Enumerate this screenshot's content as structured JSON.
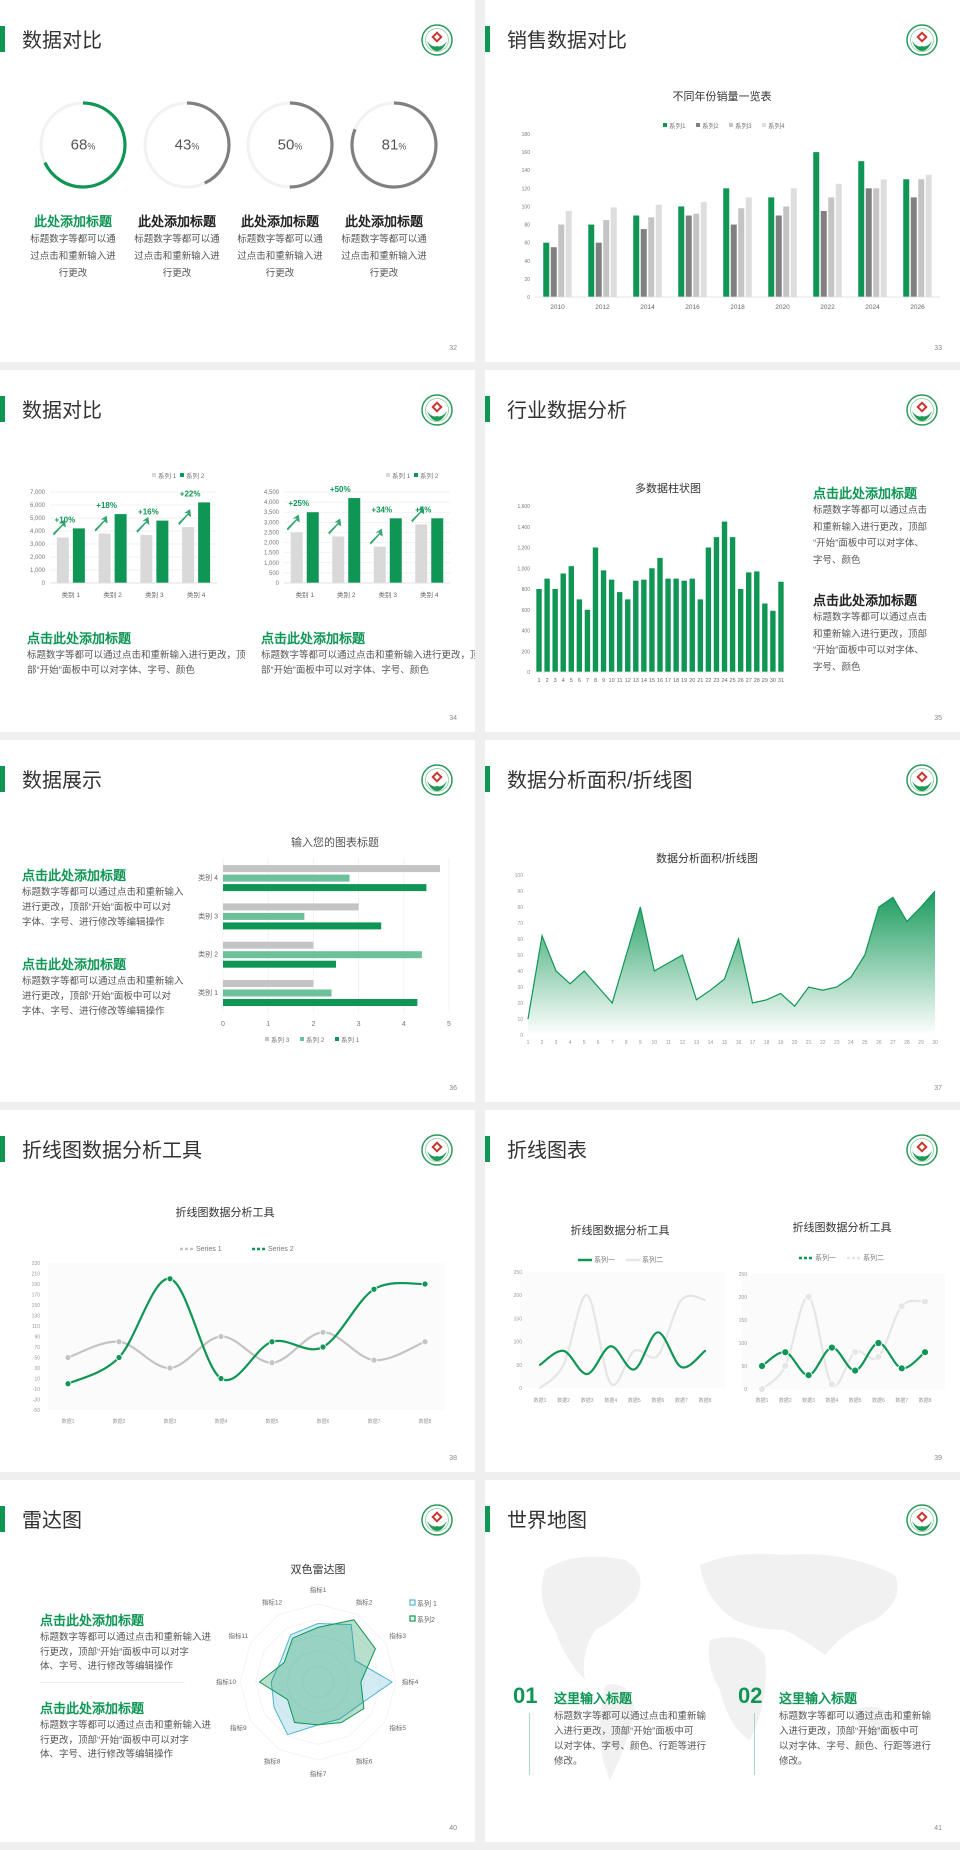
{
  "colors": {
    "green": "#0f9655",
    "gray": "#808080",
    "light_gray": "#c8c8c8",
    "lighter_gray": "#dcdcdc",
    "mid_green": "#6cc09a",
    "teal": "#4fb3cf"
  },
  "slides": {
    "s32": {
      "title": "数据对比",
      "page": "32",
      "items": [
        {
          "value": 68,
          "unit": "%",
          "heading": "此处添加标题",
          "body": [
            "标题数字等都可以通",
            "过点击和重新输入进",
            "行更改"
          ]
        },
        {
          "value": 43,
          "unit": "%",
          "heading": "此处添加标题",
          "body": [
            "标题数字等都可以通",
            "过点击和重新输入进",
            "行更改"
          ]
        },
        {
          "value": 50,
          "unit": "%",
          "heading": "此处添加标题",
          "body": [
            "标题数字等都可以通",
            "过点击和重新输入进",
            "行更改"
          ]
        },
        {
          "value": 81,
          "unit": "%",
          "heading": "此处添加标题",
          "body": [
            "标题数字等都可以通",
            "过点击和重新输入进",
            "行更改"
          ]
        }
      ]
    },
    "s33": {
      "title": "销售数据对比",
      "page": "33"
    },
    "s34": {
      "title": "数据对比",
      "page": "34",
      "blocks": [
        {
          "heading": "点击此处添加标题",
          "body": [
            "标题数字等都可以通过点击和重新输入进行更改，顶",
            "部“开始”面板中可以对字体、字号、颜色"
          ]
        },
        {
          "heading": "点击此处添加标题",
          "body": [
            "标题数字等都可以通过点击和重新输入进行更改，顶",
            "部“开始”面板中可以对字体、字号、颜色"
          ]
        }
      ]
    },
    "s35": {
      "title": "行业数据分析",
      "page": "35",
      "blocks": [
        {
          "heading": "点击此处添加标题",
          "body": [
            "标题数字等都可以通过点击",
            "和重新输入进行更改，顶部",
            "“开始”面板中可以对字体、",
            "字号、颜色"
          ]
        },
        {
          "heading": "点击此处添加标题",
          "body": [
            "标题数字等都可以通过点击",
            "和重新输入进行更改，顶部",
            "“开始”面板中可以对字体、",
            "字号、颜色"
          ]
        }
      ]
    },
    "s36": {
      "title": "数据展示",
      "page": "36",
      "blocks": [
        {
          "heading": "点击此处添加标题",
          "body": [
            "标题数字等都可以通过点击和重新输入",
            "进行更改，顶部“开始”面板中可以对",
            "字体、字号、进行修改等编辑操作"
          ]
        },
        {
          "heading": "点击此处添加标题",
          "body": [
            "标题数字等都可以通过点击和重新输入",
            "进行更改，顶部“开始”面板中可以对",
            "字体、字号、进行修改等编辑操作"
          ]
        }
      ]
    },
    "s37": {
      "title": "数据分析面积/折线图",
      "page": "37"
    },
    "s38": {
      "title": "折线图数据分析工具",
      "page": "38"
    },
    "s39": {
      "title": "折线图表",
      "page": "39"
    },
    "s40": {
      "title": "雷达图",
      "page": "40",
      "blocks": [
        {
          "heading": "点击此处添加标题",
          "body": [
            "标题数字等都可以通过点击和重新输入进",
            "行更改，顶部“开始”面板中可以对字",
            "体、字号、进行修改等编辑操作"
          ]
        },
        {
          "heading": "点击此处添加标题",
          "body": [
            "标题数字等都可以通过点击和重新输入进",
            "行更改，顶部“开始”面板中可以对字",
            "体、字号、进行修改等编辑操作"
          ]
        }
      ]
    },
    "s41": {
      "title": "世界地图",
      "page": "41",
      "items": [
        {
          "num": "01",
          "heading": "这里输入标题",
          "body": [
            "标题数字等都可以通过点击和重新输",
            "入进行更改，顶部“开始”面板中可",
            "以对字体、字号、颜色、行距等进行",
            "修改。"
          ]
        },
        {
          "num": "02",
          "heading": "这里输入标题",
          "body": [
            "标题数字等都可以通过点击和重新输",
            "入进行更改，顶部“开始”面板中可",
            "以对字体、字号、颜色、行距等进行",
            "修改。"
          ]
        }
      ]
    }
  },
  "chart_data": [
    {
      "type": "bar",
      "title": "不同年份销量一览表",
      "categories": [
        "2010",
        "2012",
        "2014",
        "2016",
        "2018",
        "2020",
        "2022",
        "2024",
        "2026"
      ],
      "series": [
        {
          "name": "系列1",
          "color": "#0f9655",
          "values": [
            60,
            80,
            90,
            100,
            120,
            110,
            160,
            150,
            130
          ]
        },
        {
          "name": "系列2",
          "color": "#808080",
          "values": [
            55,
            60,
            75,
            90,
            80,
            90,
            95,
            120,
            110
          ]
        },
        {
          "name": "系列3",
          "color": "#c4c4c4",
          "values": [
            80,
            85,
            88,
            92,
            98,
            100,
            110,
            120,
            130
          ]
        },
        {
          "name": "系列4",
          "color": "#dedede",
          "values": [
            95,
            99,
            102,
            105,
            110,
            120,
            125,
            130,
            135
          ]
        }
      ],
      "ylim": [
        0,
        180
      ],
      "yticks": [
        0,
        20,
        40,
        60,
        80,
        100,
        120,
        140,
        160,
        180
      ],
      "legend": "top",
      "grid": false
    },
    {
      "type": "bar",
      "categories": [
        "类别 1",
        "类别 2",
        "类别 3",
        "类别 4"
      ],
      "series": [
        {
          "name": "系列 1",
          "color": "#d9d9d9",
          "values": [
            3500,
            3800,
            3700,
            4300
          ]
        },
        {
          "name": "系列 2",
          "color": "#0f9655",
          "values": [
            4200,
            5300,
            4800,
            6200
          ]
        }
      ],
      "annotations": [
        "+10%",
        "+18%",
        "+16%",
        "+22%"
      ],
      "ylim": [
        0,
        7000
      ],
      "yticks": [
        0,
        1000,
        2000,
        3000,
        4000,
        5000,
        6000,
        7000
      ],
      "legend": "top-right",
      "grid": true
    },
    {
      "type": "bar",
      "categories": [
        "类别 1",
        "类别 2",
        "类别 3",
        "类别 4"
      ],
      "series": [
        {
          "name": "系列 1",
          "color": "#d9d9d9",
          "values": [
            2500,
            2300,
            1800,
            2900
          ]
        },
        {
          "name": "系列 2",
          "color": "#0f9655",
          "values": [
            3500,
            4200,
            3200,
            3200
          ]
        }
      ],
      "annotations": [
        "+25%",
        "+50%",
        "+34%",
        "+5%"
      ],
      "ylim": [
        0,
        4500
      ],
      "yticks": [
        0,
        500,
        1000,
        1500,
        2000,
        2500,
        3000,
        3500,
        4000,
        4500
      ],
      "legend": "top-right",
      "grid": true
    },
    {
      "type": "bar",
      "title": "多数据柱状图",
      "categories": [
        "1",
        "2",
        "3",
        "4",
        "5",
        "6",
        "7",
        "8",
        "9",
        "10",
        "11",
        "12",
        "13",
        "14",
        "15",
        "16",
        "17",
        "18",
        "19",
        "20",
        "21",
        "22",
        "23",
        "24",
        "25",
        "26",
        "27",
        "28",
        "29",
        "30",
        "31"
      ],
      "series": [
        {
          "color": "#0f9655",
          "values": [
            800,
            900,
            800,
            950,
            1020,
            700,
            600,
            1200,
            980,
            890,
            770,
            700,
            880,
            890,
            1000,
            1100,
            900,
            900,
            880,
            900,
            700,
            1200,
            1300,
            1450,
            1300,
            800,
            960,
            970,
            660,
            590,
            870
          ]
        }
      ],
      "ylim": [
        0,
        1600
      ],
      "yticks": [
        0,
        200,
        400,
        600,
        800,
        1000,
        1200,
        1400,
        1600
      ],
      "grid": false
    },
    {
      "type": "bar",
      "orientation": "horizontal",
      "title": "输入您的图表标题",
      "categories": [
        "类别 1",
        "类别 2",
        "类别 3",
        "类别 4"
      ],
      "series": [
        {
          "name": "系列 3",
          "color": "#c4c4c4",
          "values": [
            2,
            2,
            3,
            4.8
          ]
        },
        {
          "name": "系列 2",
          "color": "#6cc09a",
          "values": [
            2.4,
            4.4,
            1.8,
            2.8
          ]
        },
        {
          "name": "系列 1",
          "color": "#0f9655",
          "values": [
            4.3,
            2.5,
            3.5,
            4.5
          ]
        }
      ],
      "xlim": [
        0,
        5
      ],
      "xticks": [
        0,
        1,
        2,
        3,
        4,
        5
      ],
      "legend": "bottom",
      "grid": true
    },
    {
      "type": "area",
      "title": "数据分析面积/折线图",
      "x": [
        1,
        2,
        3,
        4,
        5,
        6,
        7,
        8,
        9,
        10,
        11,
        12,
        13,
        14,
        15,
        16,
        17,
        18,
        19,
        20,
        21,
        22,
        23,
        24,
        25,
        26,
        27,
        28,
        29,
        30
      ],
      "series": [
        {
          "color": "#0f9655",
          "values": [
            10,
            62,
            40,
            32,
            40,
            30,
            20,
            50,
            80,
            40,
            45,
            50,
            22,
            28,
            35,
            60,
            20,
            22,
            26,
            18,
            30,
            28,
            30,
            36,
            50,
            80,
            86,
            71,
            80,
            90
          ]
        }
      ],
      "ylim": [
        0,
        100
      ],
      "yticks": [
        0,
        10,
        20,
        30,
        40,
        50,
        60,
        70,
        80,
        90,
        100
      ],
      "grid": false
    },
    {
      "type": "line",
      "title": "折线图数据分析工具",
      "categories": [
        "数据1",
        "数据2",
        "数据3",
        "数据4",
        "数据5",
        "数据6",
        "数据7",
        "数据8"
      ],
      "series": [
        {
          "name": "Series 1",
          "color": "#c4c4c4",
          "values": [
            50,
            80,
            30,
            90,
            40,
            98,
            45,
            80
          ]
        },
        {
          "name": "Series 2",
          "color": "#0f9655",
          "values": [
            0,
            50,
            200,
            10,
            80,
            70,
            180,
            190
          ]
        }
      ],
      "ylim": [
        -50,
        230
      ],
      "yticks": [
        -50,
        -30,
        -10,
        10,
        30,
        50,
        70,
        90,
        110,
        130,
        150,
        170,
        190,
        210,
        230
      ],
      "smooth": true,
      "markers": true,
      "legend": "top"
    },
    {
      "type": "line",
      "title": "折线图数据分析工具",
      "categories": [
        "数据1",
        "数据2",
        "数据3",
        "数据4",
        "数据5",
        "数据6",
        "数据7",
        "数据8"
      ],
      "series": [
        {
          "name": "系列一",
          "color": "#0f9655",
          "values": [
            50,
            80,
            30,
            90,
            40,
            120,
            45,
            80
          ]
        },
        {
          "name": "系列二",
          "color": "#e6e6e6",
          "values": [
            0,
            50,
            200,
            10,
            80,
            70,
            190,
            190
          ]
        }
      ],
      "ylim": [
        0,
        250
      ],
      "yticks": [
        0,
        50,
        100,
        150,
        200,
        250
      ],
      "smooth": true,
      "markers": false,
      "legend": "top"
    },
    {
      "type": "line",
      "title": "折线图数据分析工具",
      "categories": [
        "数据1",
        "数据2",
        "数据3",
        "数据4",
        "数据5",
        "数据6",
        "数据7",
        "数据8"
      ],
      "series": [
        {
          "name": "系列一",
          "color": "#0f9655",
          "values": [
            50,
            80,
            30,
            90,
            40,
            100,
            45,
            80
          ]
        },
        {
          "name": "系列二",
          "color": "#e6e6e6",
          "values": [
            0,
            50,
            200,
            10,
            80,
            70,
            180,
            190
          ]
        }
      ],
      "ylim": [
        0,
        250
      ],
      "yticks": [
        0,
        50,
        100,
        150,
        200,
        250
      ],
      "smooth": true,
      "markers": true,
      "legend": "top"
    },
    {
      "type": "radar",
      "title": "双色雷达图",
      "categories": [
        "指标1",
        "指标2",
        "指标3",
        "指标4",
        "指标5",
        "指标6",
        "指标7",
        "指标8",
        "指标9",
        "指标10",
        "指标11",
        "指标12"
      ],
      "series": [
        {
          "name": "系列 1",
          "color": "#4fb3cf",
          "values": [
            75,
            85,
            55,
            95,
            60,
            55,
            55,
            78,
            65,
            60,
            55,
            70
          ]
        },
        {
          "name": "系列2",
          "color": "#0f9655",
          "values": [
            70,
            92,
            85,
            55,
            68,
            60,
            55,
            60,
            45,
            75,
            50,
            65
          ]
        }
      ],
      "rmax": 100,
      "legend": "top-right"
    }
  ]
}
